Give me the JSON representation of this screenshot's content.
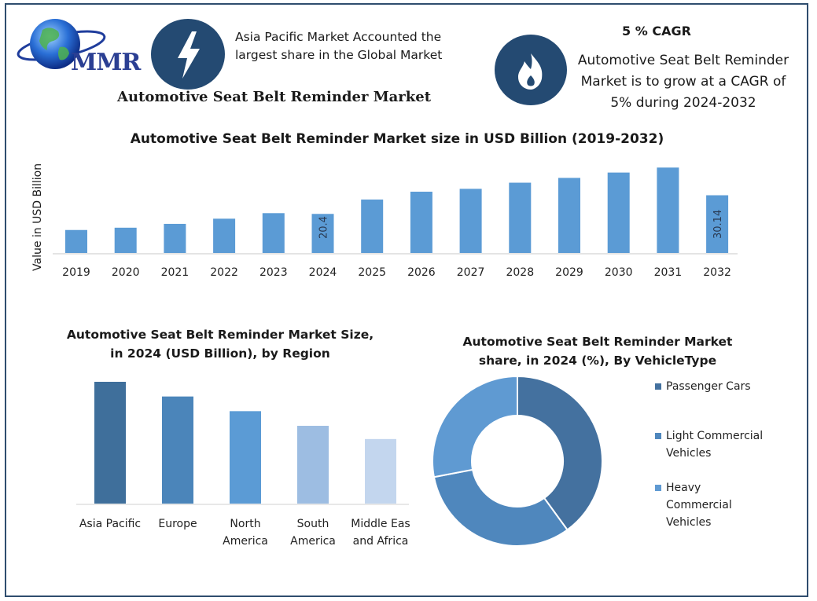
{
  "brand": {
    "logo_text": "MMR"
  },
  "header": {
    "main_title": "Automotive Seat Belt Reminder Market",
    "info_apac_line1": "Asia Pacific Market Accounted the",
    "info_apac_line2": "largest share in the Global Market",
    "cagr_title": "5 % CAGR",
    "cagr_line1": "Automotive Seat Belt Reminder",
    "cagr_line2": "Market is to grow at a CAGR of",
    "cagr_line3": "5% during 2024-2032",
    "icons": [
      "lightning-bolt-icon",
      "flame-icon",
      "globe-icon"
    ]
  },
  "colors": {
    "bar": "#5b9bd5",
    "region": [
      "#3f6f9b",
      "#4b85ba",
      "#5b9bd5",
      "#9dbde2",
      "#c3d6ee"
    ],
    "donut": [
      "#44719f",
      "#4f87bd",
      "#5f9ad2"
    ],
    "circle": "#244a72"
  },
  "chart_data": [
    {
      "type": "bar",
      "title": "Automotive Seat Belt Reminder Market size in USD Billion (2019-2032)",
      "ylabel": "Value in USD Billion",
      "xlabel": "",
      "categories": [
        "2019",
        "2020",
        "2021",
        "2022",
        "2023",
        "2024",
        "2025",
        "2026",
        "2027",
        "2028",
        "2029",
        "2030",
        "2031",
        "2032"
      ],
      "values": [
        12.0,
        13.2,
        15.2,
        17.9,
        20.8,
        20.4,
        27.9,
        32.0,
        33.5,
        36.7,
        39.2,
        42.0,
        44.6,
        30.14
      ],
      "data_labels": {
        "2024": "20.4",
        "2032": "30.14"
      },
      "ylim": [
        0,
        48
      ],
      "grid": false
    },
    {
      "type": "bar",
      "title_line1": "Automotive Seat Belt Reminder Market Size,",
      "title_line2": "in 2024 (USD Billion), by Region",
      "categories": [
        {
          "line1": "Asia Pacific",
          "line2": ""
        },
        {
          "line1": "Europe",
          "line2": ""
        },
        {
          "line1": "North",
          "line2": "America"
        },
        {
          "line1": "South",
          "line2": "America"
        },
        {
          "line1": "Middle Eas",
          "line2": "and Africa"
        }
      ],
      "values": [
        8.3,
        7.3,
        6.3,
        5.3,
        4.4
      ],
      "ylim": [
        0,
        9
      ],
      "grid": false
    },
    {
      "type": "pie",
      "donut": true,
      "title_line1": "Automotive Seat Belt Reminder Market",
      "title_line2": "share, in 2024 (%), By VehicleType",
      "slices": [
        {
          "label": "Passenger Cars",
          "legend_line1": "Passenger Cars",
          "legend_line2": "",
          "legend_line3": "",
          "value": 40
        },
        {
          "label": "Light Commercial Vehicles",
          "legend_line1": "Light Commercial",
          "legend_line2": "Vehicles",
          "legend_line3": "",
          "value": 32
        },
        {
          "label": "Heavy Commercial Vehicles",
          "legend_line1": "Heavy",
          "legend_line2": "Commercial",
          "legend_line3": "Vehicles",
          "value": 28
        }
      ],
      "legend_position": "right"
    }
  ]
}
